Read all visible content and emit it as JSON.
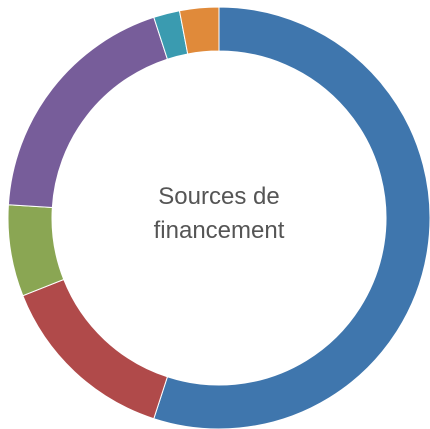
{
  "chart_data": {
    "type": "pie",
    "title": "Sources de financement",
    "categories": [
      null,
      null,
      null,
      null,
      null,
      null
    ],
    "values": [
      55,
      14,
      7,
      19,
      2,
      3
    ],
    "colors": [
      "#3f76ad",
      "#b04a4a",
      "#8aa653",
      "#775d9a",
      "#3a9bb0",
      "#e08a3a"
    ],
    "donut": true
  }
}
